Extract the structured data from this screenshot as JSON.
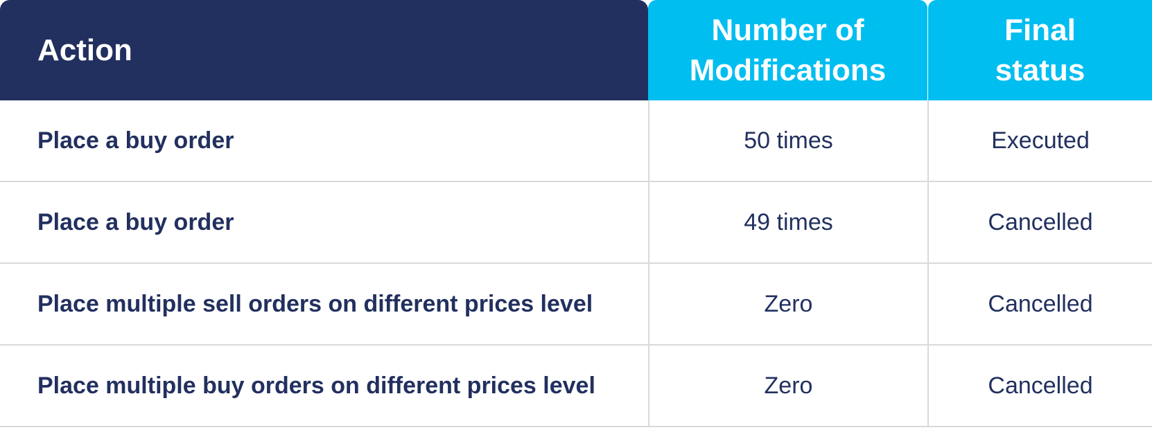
{
  "header": {
    "action": "Action",
    "modifications_line1": "Number of",
    "modifications_line2": "Modifications",
    "status_line1": "Final",
    "status_line2": "status"
  },
  "rows": [
    {
      "action": "Place a buy order",
      "modifications": "50 times",
      "status": "Executed"
    },
    {
      "action": "Place a buy order",
      "modifications": "49 times",
      "status": "Cancelled"
    },
    {
      "action": "Place multiple sell orders on different prices level",
      "modifications": "Zero",
      "status": "Cancelled"
    },
    {
      "action": "Place multiple buy orders on different prices level",
      "modifications": "Zero",
      "status": "Cancelled"
    }
  ],
  "colors": {
    "header_dark": "#22305f",
    "header_accent": "#00bef0",
    "text": "#22305f",
    "border": "#d9d9d9"
  }
}
